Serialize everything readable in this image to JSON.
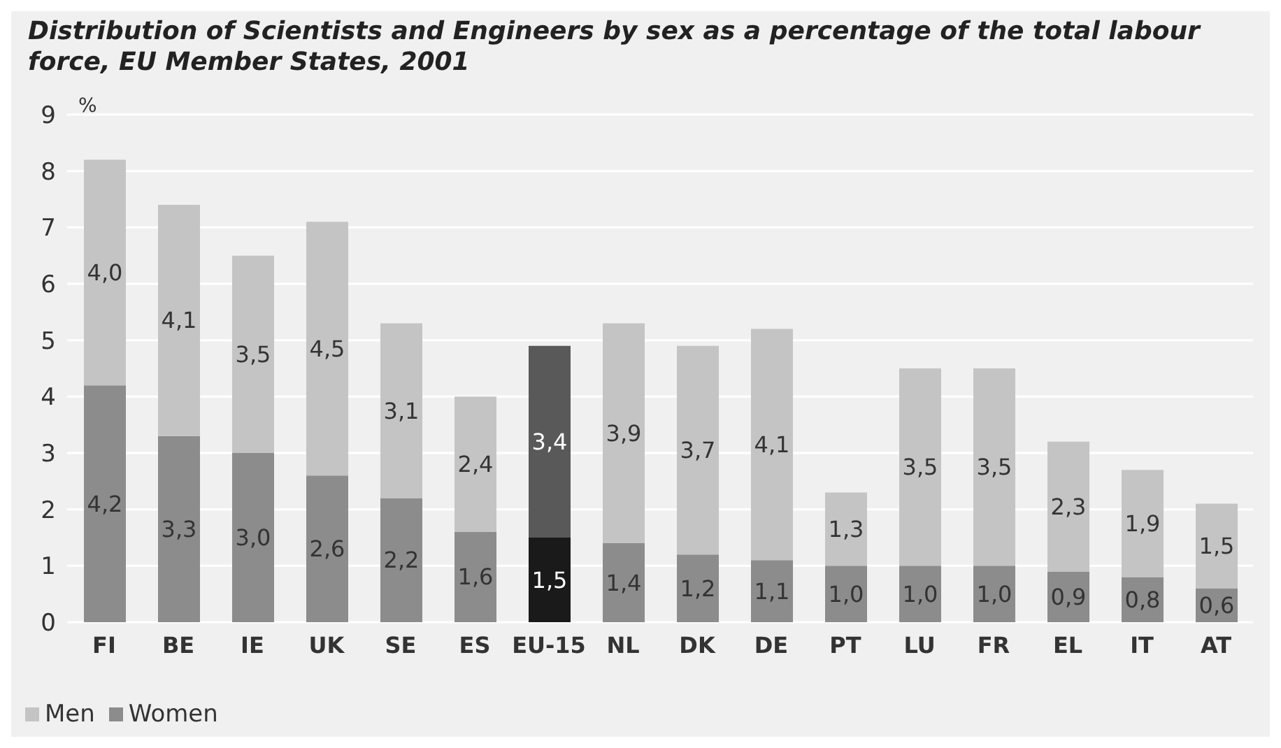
{
  "chart_data": {
    "type": "bar",
    "title": "Distribution of Scientists and Engineers by sex as a percentage of the total labour force, EU Member States, 2001",
    "ylabel": "%",
    "categories": [
      "FI",
      "BE",
      "IE",
      "UK",
      "SE",
      "ES",
      "EU-15",
      "NL",
      "DK",
      "DE",
      "PT",
      "LU",
      "FR",
      "EL",
      "IT",
      "AT"
    ],
    "stacked": true,
    "ylim": [
      0,
      9
    ],
    "yticks": [
      0,
      1,
      2,
      3,
      4,
      5,
      6,
      7,
      8,
      9
    ],
    "grid": "y",
    "legend": "bottom left",
    "series": [
      {
        "name": "Women",
        "color": "#8c8c8c",
        "colors": [
          "#8c8c8c",
          "#8c8c8c",
          "#8c8c8c",
          "#8c8c8c",
          "#8c8c8c",
          "#8c8c8c",
          "#1a1a1a",
          "#8c8c8c",
          "#8c8c8c",
          "#8c8c8c",
          "#8c8c8c",
          "#8c8c8c",
          "#8c8c8c",
          "#8c8c8c",
          "#8c8c8c",
          "#8c8c8c"
        ],
        "values": [
          4.2,
          3.3,
          3.0,
          2.6,
          2.2,
          1.6,
          1.5,
          1.4,
          1.2,
          1.1,
          1.0,
          1.0,
          1.0,
          0.9,
          0.8,
          0.6
        ],
        "value_labels": [
          "4,2",
          "3,3",
          "3,0",
          "2,6",
          "2,2",
          "1,6",
          "1,5",
          "1,4",
          "1,2",
          "1,1",
          "1,0",
          "1,0",
          "1,0",
          "0,9",
          "0,8",
          "0,6"
        ]
      },
      {
        "name": "Men",
        "color": "#c4c4c4",
        "colors": [
          "#c4c4c4",
          "#c4c4c4",
          "#c4c4c4",
          "#c4c4c4",
          "#c4c4c4",
          "#c4c4c4",
          "#595959",
          "#c4c4c4",
          "#c4c4c4",
          "#c4c4c4",
          "#c4c4c4",
          "#c4c4c4",
          "#c4c4c4",
          "#c4c4c4",
          "#c4c4c4",
          "#c4c4c4"
        ],
        "values": [
          4.0,
          4.1,
          3.5,
          4.5,
          3.1,
          2.4,
          3.4,
          3.9,
          3.7,
          4.1,
          1.3,
          3.5,
          3.5,
          2.3,
          1.9,
          1.5
        ],
        "value_labels": [
          "4,0",
          "4,1",
          "3,5",
          "4,5",
          "3,1",
          "2,4",
          "3,4",
          "3,9",
          "3,7",
          "4,1",
          "1,3",
          "3,5",
          "3,5",
          "2,3",
          "1,9",
          "1,5"
        ]
      }
    ]
  }
}
